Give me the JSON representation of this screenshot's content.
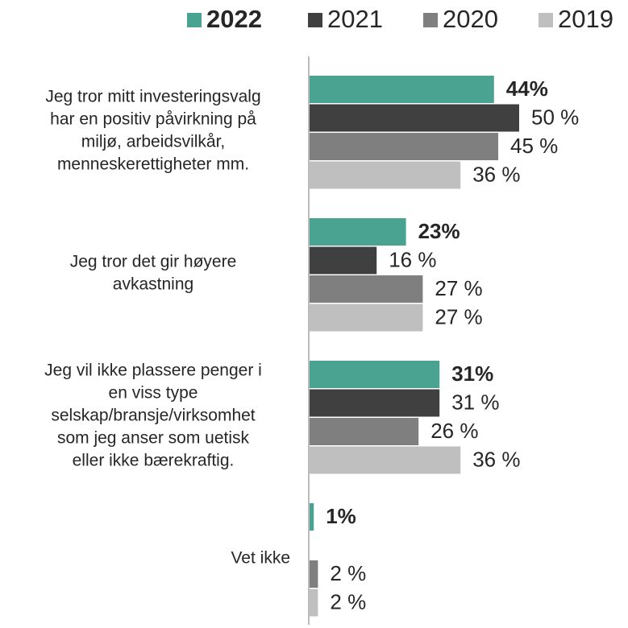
{
  "chart_data": {
    "type": "bar",
    "orientation": "horizontal",
    "categories": [
      [
        "Jeg tror mitt investeringsvalg",
        "har en positiv påvirkning på",
        "miljø, arbeidsvilkår,",
        "menneskerettigheter mm."
      ],
      [
        "Jeg tror det gir høyere",
        "avkastning"
      ],
      [
        "Jeg vil ikke plassere penger i",
        "en viss type",
        "selskap/bransje/virksomhet",
        "som jeg anser som uetisk",
        "eller ikke bærekraftig."
      ],
      [
        "Vet ikke"
      ]
    ],
    "series": [
      {
        "name": "2022",
        "color": "#4aa391",
        "values": [
          44,
          23,
          31,
          1
        ],
        "value_labels": [
          "44%",
          "23%",
          "31%",
          "1%"
        ]
      },
      {
        "name": "2021",
        "color": "#404040",
        "values": [
          50,
          16,
          31,
          null
        ],
        "value_labels": [
          "50 %",
          "16 %",
          "31 %",
          null
        ]
      },
      {
        "name": "2020",
        "color": "#7f7f7f",
        "values": [
          45,
          27,
          26,
          2
        ],
        "value_labels": [
          "45 %",
          "27 %",
          "26 %",
          "2 %"
        ]
      },
      {
        "name": "2019",
        "color": "#bfbfbf",
        "values": [
          36,
          27,
          36,
          2
        ],
        "value_labels": [
          "36 %",
          "27 %",
          "36 %",
          "2 %"
        ]
      }
    ],
    "legend": "top"
  }
}
